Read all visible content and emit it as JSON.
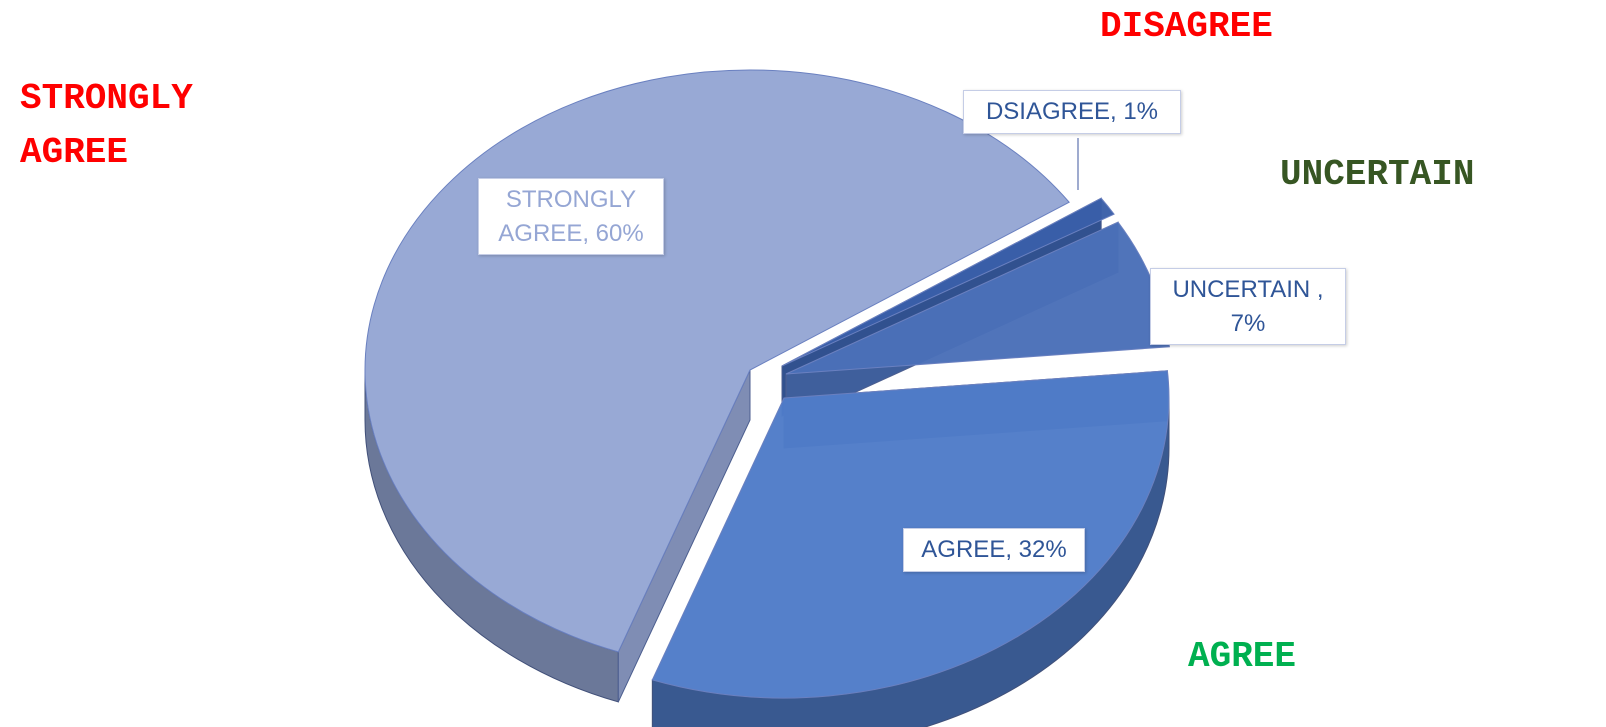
{
  "chart_data": {
    "type": "pie",
    "categories": [
      "STRONGLY AGREE",
      "DSIAGREE",
      "UNCERTAIN",
      "AGREE"
    ],
    "values": [
      60,
      1,
      7,
      32
    ],
    "value_labels": [
      "STRONGLY AGREE, 60%",
      "DSIAGREE, 1%",
      "UNCERTAIN , 7%",
      "AGREE, 32%"
    ],
    "colors": [
      "#95a6d4",
      "#3a5fa8",
      "#4a70b8",
      "#4f7cc8"
    ],
    "annotations": [
      {
        "text": "STRONGLY AGREE",
        "color": "#ff0000"
      },
      {
        "text": "DISAGREE",
        "color": "#ff0000"
      },
      {
        "text": "UNCERTAIN",
        "color": "#375623"
      },
      {
        "text": "AGREE",
        "color": "#00b050"
      }
    ]
  }
}
